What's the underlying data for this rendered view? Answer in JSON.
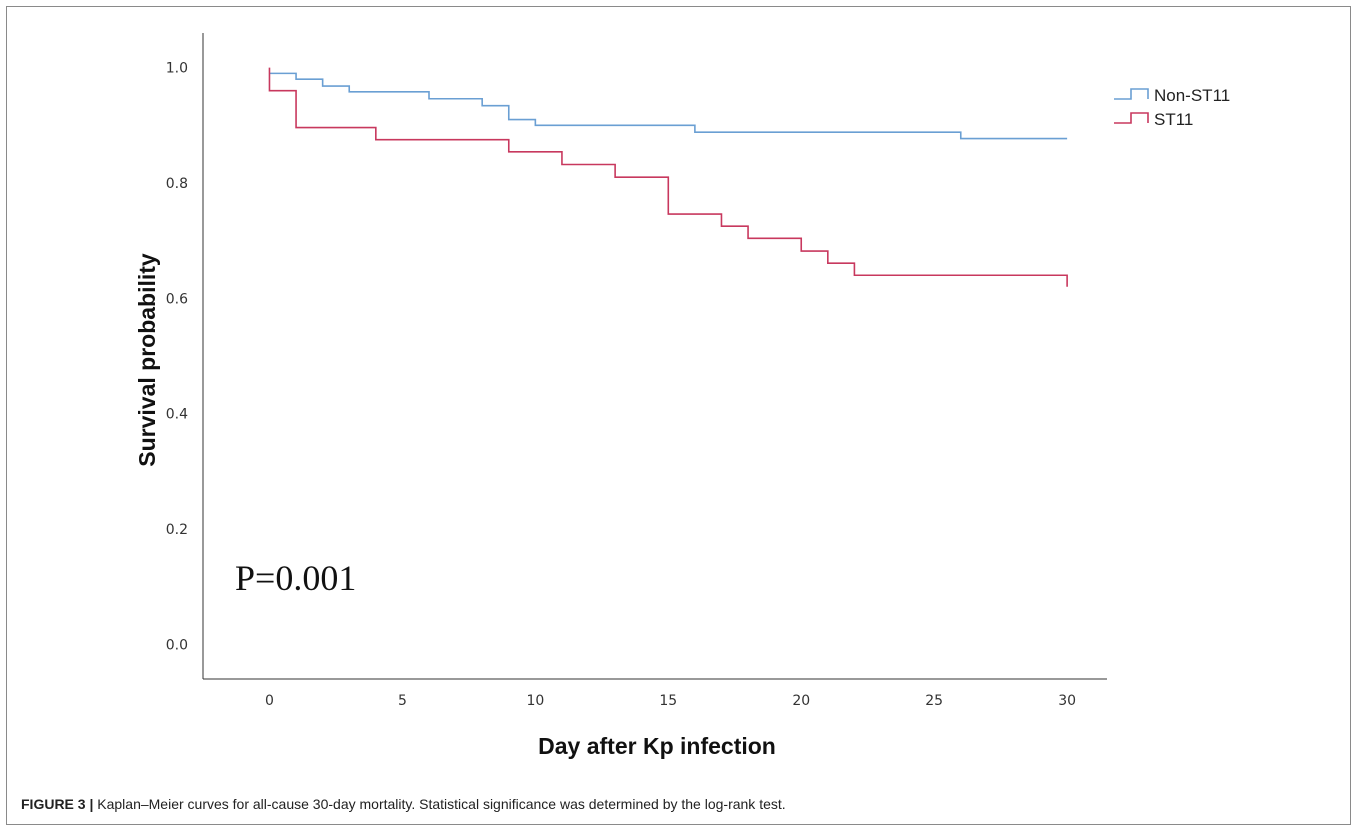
{
  "chart_data": {
    "type": "line",
    "step": true,
    "xlabel": "Day after Kp infection",
    "ylabel": "Survival probability",
    "xlim": [
      -2.5,
      31.5
    ],
    "ylim": [
      -0.06,
      1.06
    ],
    "xticks": [
      0,
      5,
      10,
      15,
      20,
      25,
      30
    ],
    "yticks": [
      0.0,
      0.2,
      0.4,
      0.6,
      0.8,
      1.0
    ],
    "ytick_labels": [
      "0.0",
      "0.2",
      "0.4",
      "0.6",
      "0.8",
      "1.0"
    ],
    "legend_position": "top-right",
    "grid": false,
    "annotation": "P=0.001",
    "series": [
      {
        "name": "Non-ST11",
        "color": "#6a9fd3",
        "x": [
          0,
          1,
          2,
          3,
          6,
          8,
          9,
          10,
          16,
          26,
          30
        ],
        "y": [
          0.99,
          0.98,
          0.968,
          0.958,
          0.946,
          0.934,
          0.91,
          0.9,
          0.888,
          0.877,
          0.877
        ]
      },
      {
        "name": "ST11",
        "color": "#c8385e",
        "x": [
          0,
          0,
          1,
          4,
          9,
          11,
          13,
          15,
          17,
          18,
          20,
          21,
          22,
          30,
          30
        ],
        "y": [
          1.0,
          0.96,
          0.896,
          0.875,
          0.854,
          0.832,
          0.81,
          0.746,
          0.725,
          0.704,
          0.682,
          0.661,
          0.64,
          0.64,
          0.62
        ]
      }
    ]
  },
  "caption": {
    "label": "FIGURE 3 |",
    "text": " Kaplan–Meier curves for all-cause 30-day mortality. Statistical significance was determined by the log-rank test."
  }
}
